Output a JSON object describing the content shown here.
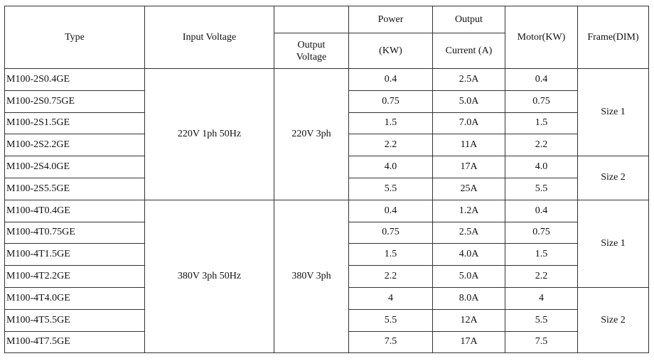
{
  "table": {
    "header": {
      "type": "Type",
      "input_voltage": "Input Voltage",
      "output_voltage": "Output Voltage",
      "power": [
        "Power",
        "(KW)"
      ],
      "output_current": [
        "Output",
        "Current (A)"
      ],
      "motor": "Motor(KW)",
      "frame": "Frame(DIM)"
    },
    "groups": [
      {
        "input_voltage": "220V 1ph 50Hz",
        "output_voltage": "220V 3ph",
        "frames": [
          {
            "frame": "Size 1",
            "rows": [
              [
                "M100-2S0.4GE",
                "0.4",
                "2.5A",
                "0.4"
              ],
              [
                "M100-2S0.75GE",
                "0.75",
                "5.0A",
                "0.75"
              ],
              [
                "M100-2S1.5GE",
                "1.5",
                "7.0A",
                "1.5"
              ],
              [
                "M100-2S2.2GE",
                "2.2",
                "11A",
                "2.2"
              ]
            ]
          },
          {
            "frame": "Size 2",
            "rows": [
              [
                "M100-2S4.0GE",
                "4.0",
                "17A",
                "4.0"
              ],
              [
                "M100-2S5.5GE",
                "5.5",
                "25A",
                "5.5"
              ]
            ]
          }
        ]
      },
      {
        "input_voltage": "380V 3ph 50Hz",
        "output_voltage": "380V 3ph",
        "frames": [
          {
            "frame": "Size 1",
            "rows": [
              [
                "M100-4T0.4GE",
                "0.4",
                "1.2A",
                "0.4"
              ],
              [
                "M100-4T0.75GE",
                "0.75",
                "2.5A",
                "0.75"
              ],
              [
                "M100-4T1.5GE",
                "1.5",
                "4.0A",
                "1.5"
              ],
              [
                "M100-4T2.2GE",
                "2.2",
                "5.0A",
                "2.2"
              ]
            ]
          },
          {
            "frame": "Size 2",
            "rows": [
              [
                "M100-4T4.0GE",
                "4",
                "8.0A",
                "4"
              ],
              [
                "M100-4T5.5GE",
                "5.5",
                "12A",
                "5.5"
              ],
              [
                "M100-4T7.5GE",
                "7.5",
                "17A",
                "7.5"
              ]
            ]
          }
        ]
      }
    ]
  }
}
